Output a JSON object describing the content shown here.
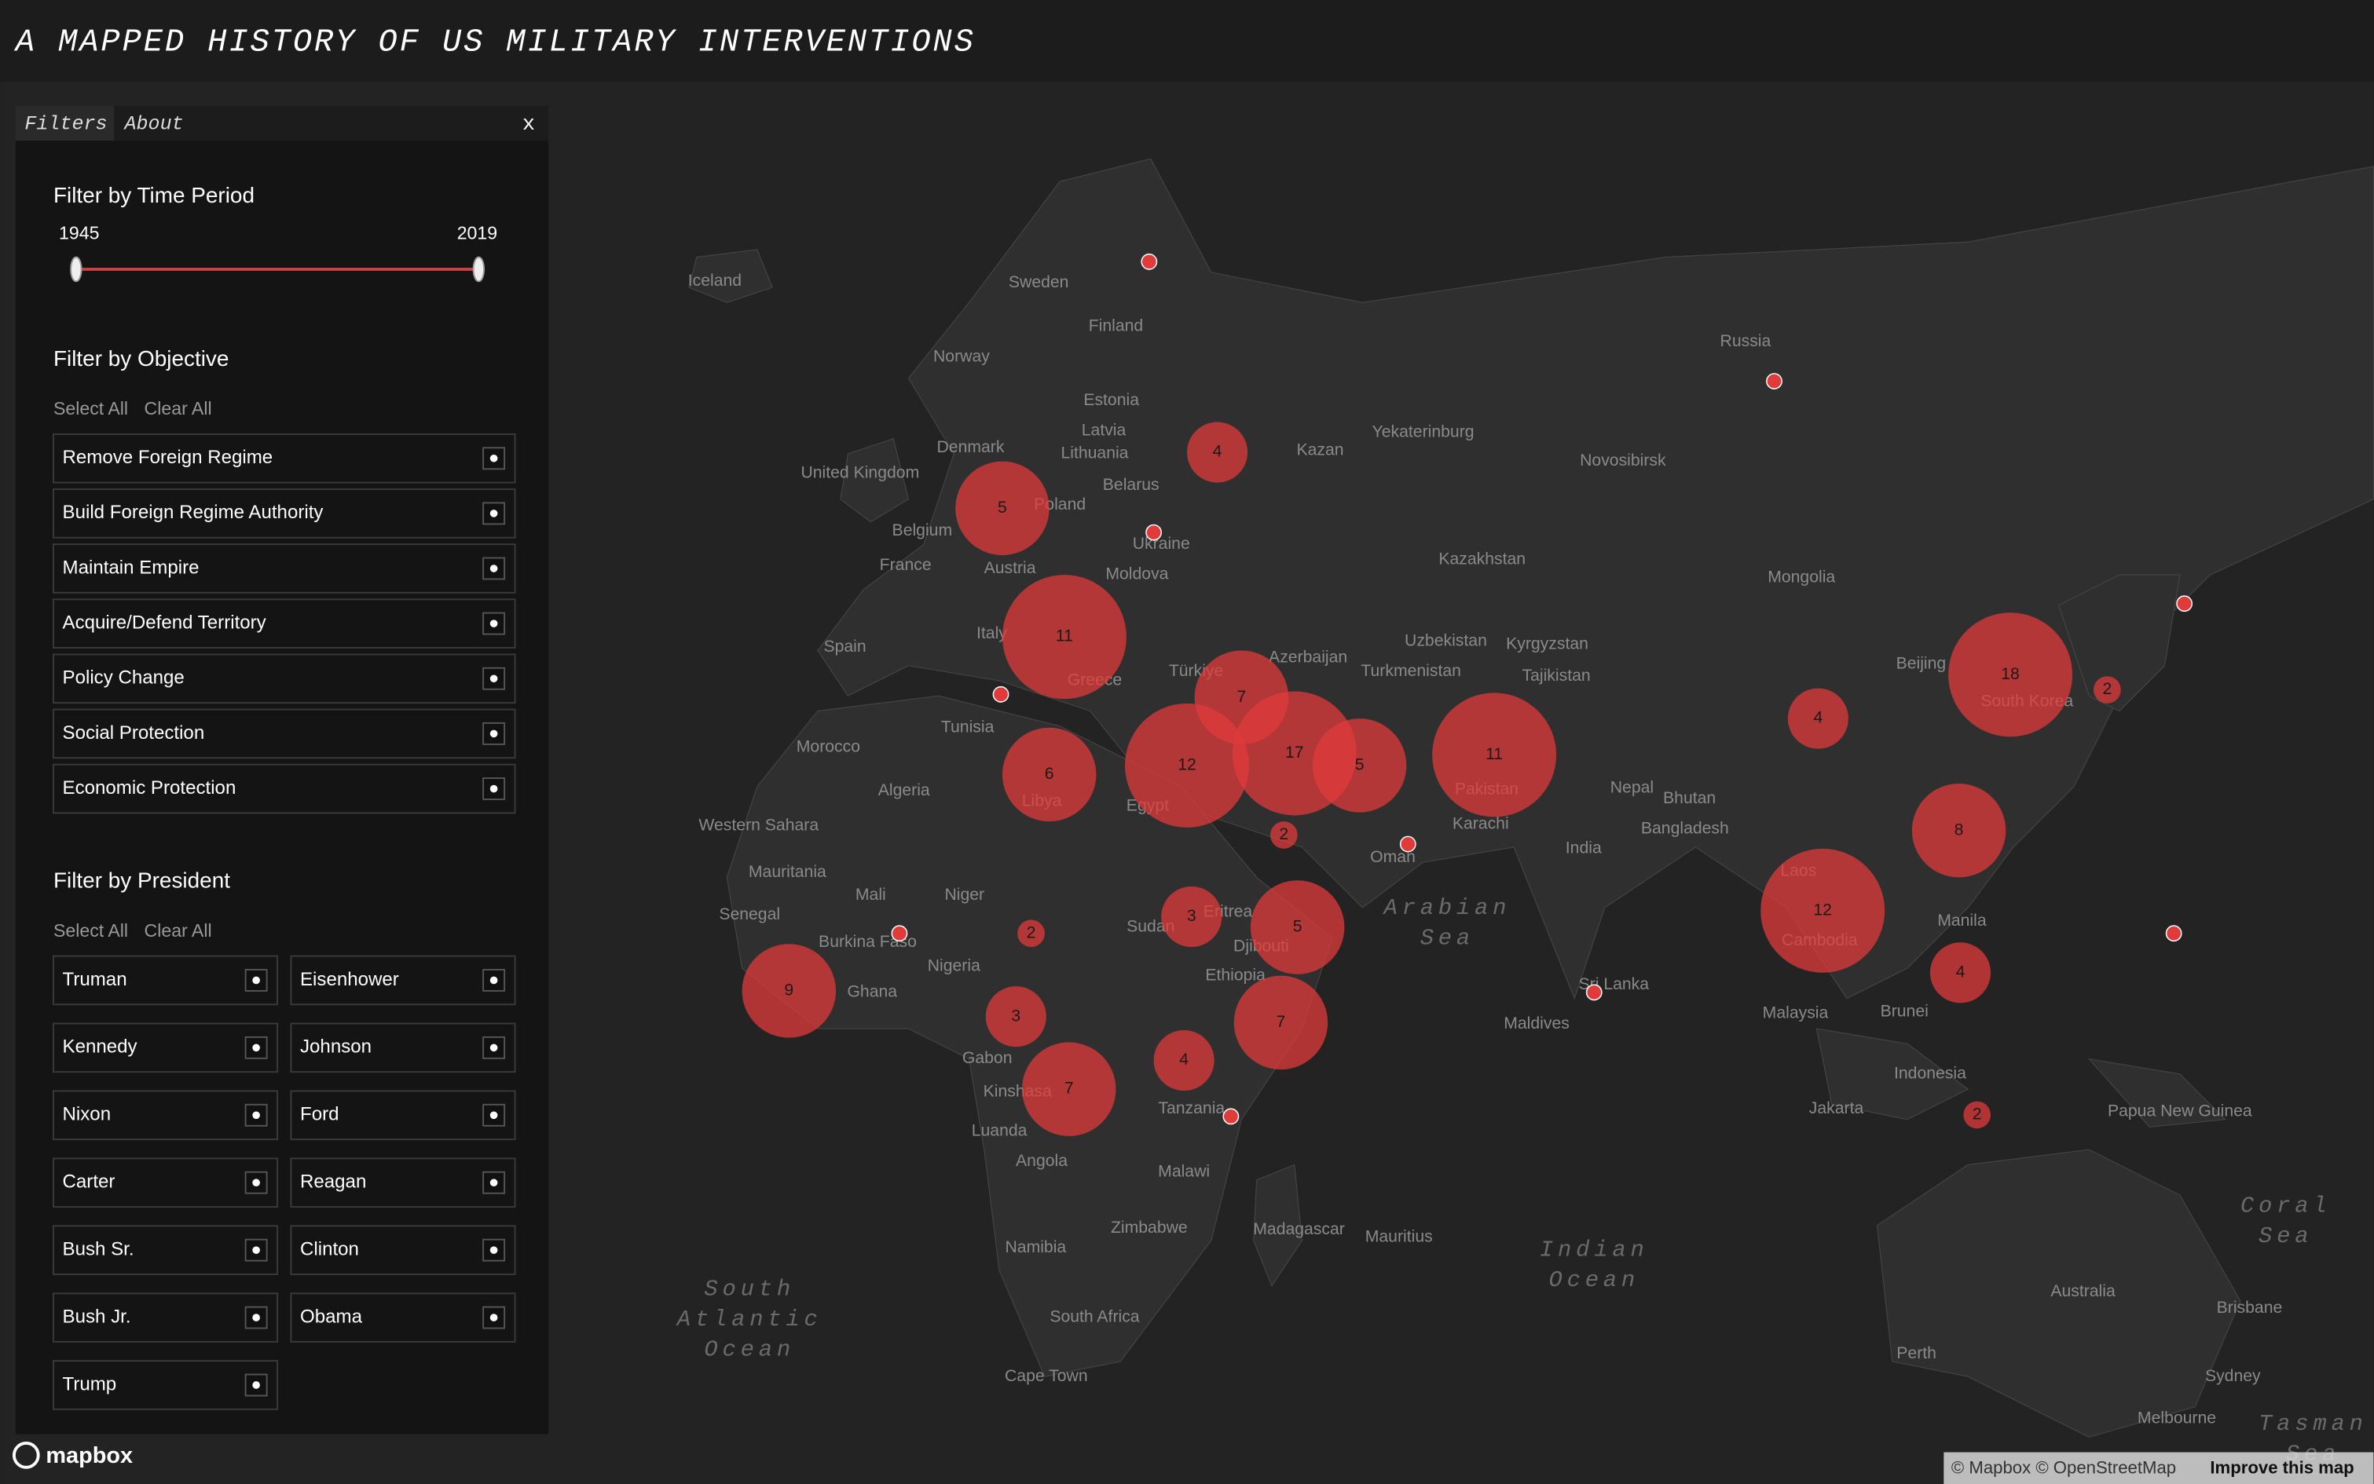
{
  "header": {
    "title": "A MAPPED HISTORY OF US MILITARY INTERVENTIONS"
  },
  "panel": {
    "tabs": [
      "Filters",
      "About"
    ],
    "close": "x",
    "time": {
      "heading": "Filter by Time Period",
      "start": 1945,
      "end": 2019
    },
    "objective": {
      "heading": "Filter by Objective",
      "select_all": "Select All",
      "clear_all": "Clear All",
      "options": [
        "Remove Foreign Regime",
        "Build Foreign Regime Authority",
        "Maintain Empire",
        "Acquire/Defend Territory",
        "Policy Change",
        "Social Protection",
        "Economic Protection"
      ]
    },
    "president": {
      "heading": "Filter by President",
      "select_all": "Select All",
      "clear_all": "Clear All",
      "options": [
        "Truman",
        "Eisenhower",
        "Kennedy",
        "Johnson",
        "Nixon",
        "Ford",
        "Carter",
        "Reagan",
        "Bush Sr.",
        "Clinton",
        "Bush Jr.",
        "Obama",
        "Trump"
      ]
    }
  },
  "map": {
    "clusters": [
      5,
      4,
      11,
      7,
      17,
      12,
      5,
      6,
      11,
      2,
      4,
      18,
      2,
      8,
      12,
      4,
      2,
      3,
      5,
      2,
      9,
      3,
      7,
      4,
      7
    ],
    "places": [
      "Iceland",
      "Sweden",
      "Finland",
      "Norway",
      "Russia",
      "Estonia",
      "Latvia",
      "Denmark",
      "Lithuania",
      "Kazan",
      "Yekaterinburg",
      "Novosibirsk",
      "United Kingdom",
      "Belarus",
      "Poland",
      "Belgium",
      "Ukraine",
      "France",
      "Austria",
      "Moldova",
      "Kazakhstan",
      "Mongolia",
      "Spain",
      "Italy",
      "Uzbekistan",
      "Kyrgyzstan",
      "Beijing",
      "Türkiye",
      "Azerbaijan",
      "Turkmenistan",
      "Tajikistan",
      "Greece",
      "South Korea",
      "Tunisia",
      "Morocco",
      "Algeria",
      "Libya",
      "Egypt",
      "Pakistan",
      "Nepal",
      "Bhutan",
      "Karachi",
      "Bangladesh",
      "Western Sahara",
      "India",
      "Oman",
      "Mauritania",
      "Mali",
      "Niger",
      "Laos",
      "Senegal",
      "Burkina Faso",
      "Sudan",
      "Eritrea",
      "Djibouti",
      "Nigeria",
      "Ethiopia",
      "Ghana",
      "Cambodia",
      "Manila",
      "Sri Lanka",
      "Malaysia",
      "Brunei",
      "Maldives",
      "Gabon",
      "Kinshasa",
      "Tanzania",
      "Indonesia",
      "Jakarta",
      "Papua New Guinea",
      "Luanda",
      "Angola",
      "Malawi",
      "Zimbabwe",
      "Madagascar",
      "Mauritius",
      "Namibia",
      "South Africa",
      "Cape Town",
      "Australia",
      "Brisbane",
      "Perth",
      "Sydney",
      "Melbourne"
    ],
    "oceans": [
      [
        "Arabian",
        "Sea"
      ],
      [
        "Indian",
        "Ocean"
      ],
      [
        "South",
        "Atlantic",
        "Ocean"
      ],
      [
        "Coral",
        "Sea"
      ],
      [
        "Tasman",
        "Sea"
      ]
    ]
  },
  "attribution": {
    "logo": "mapbox",
    "text": "© Mapbox © OpenStreetMap",
    "link": "Improve this map"
  }
}
